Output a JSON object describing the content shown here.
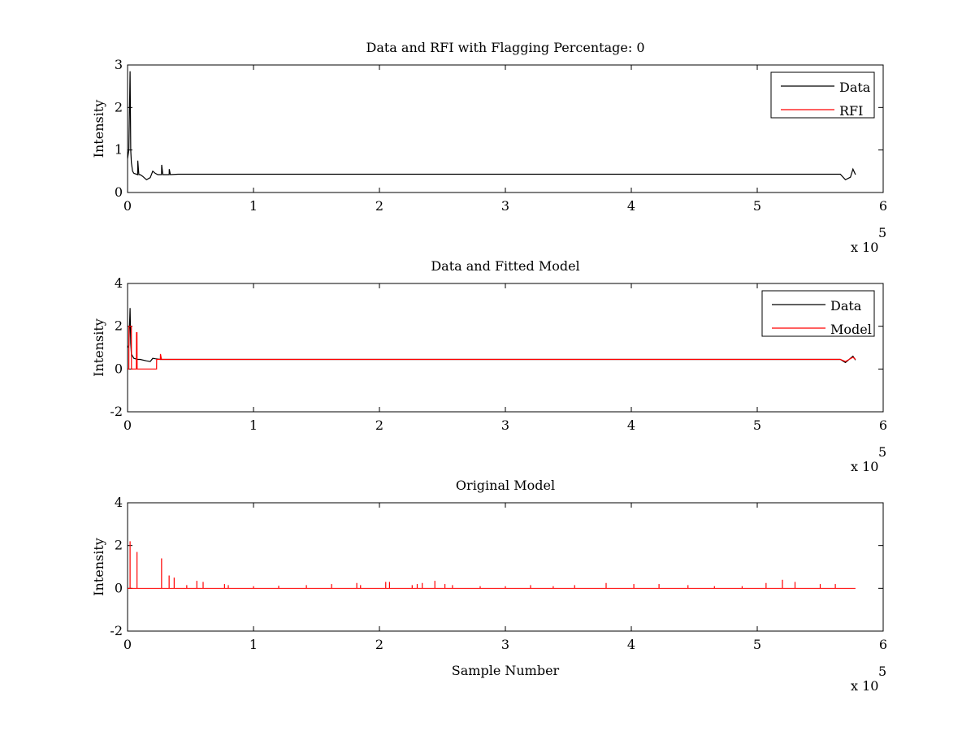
{
  "chart_data": [
    {
      "type": "line",
      "title": "Data and RFI with Flagging Percentage: 0",
      "xlabel": "",
      "ylabel": "Intensity",
      "xlim": [
        0,
        6
      ],
      "ylim": [
        0,
        3
      ],
      "xticks": [
        "0",
        "1",
        "2",
        "3",
        "4",
        "5",
        "6"
      ],
      "yticks": [
        "0",
        "1",
        "2",
        "3"
      ],
      "x_multiplier": "x 10",
      "x_exponent": "5",
      "legend": {
        "position": "top-right",
        "entries": [
          "Data",
          "RFI"
        ]
      },
      "series": [
        {
          "name": "Data",
          "color": "#000000",
          "x": [
            0.0,
            0.01,
            0.02,
            0.025,
            0.03,
            0.04,
            0.05,
            0.08,
            0.081,
            0.09,
            0.1,
            0.12,
            0.15,
            0.18,
            0.2,
            0.22,
            0.24,
            0.27,
            0.271,
            0.28,
            0.33,
            0.331,
            0.34,
            0.4,
            0.5,
            1.0,
            1.5,
            2.0,
            2.5,
            3.0,
            3.5,
            4.0,
            4.5,
            5.0,
            5.5,
            5.6,
            5.66,
            5.7,
            5.74,
            5.76,
            5.78
          ],
          "y": [
            0.8,
            1.0,
            2.85,
            1.0,
            0.7,
            0.5,
            0.45,
            0.42,
            0.75,
            0.42,
            0.42,
            0.38,
            0.3,
            0.35,
            0.5,
            0.45,
            0.42,
            0.42,
            0.65,
            0.42,
            0.42,
            0.55,
            0.42,
            0.43,
            0.43,
            0.43,
            0.43,
            0.43,
            0.43,
            0.43,
            0.43,
            0.43,
            0.43,
            0.43,
            0.43,
            0.43,
            0.43,
            0.3,
            0.36,
            0.55,
            0.42
          ]
        },
        {
          "name": "RFI",
          "color": "#ff0000",
          "x": [],
          "y": []
        }
      ]
    },
    {
      "type": "line",
      "title": "Data and Fitted Model",
      "xlabel": "",
      "ylabel": "Intensity",
      "xlim": [
        0,
        6
      ],
      "ylim": [
        -2,
        4
      ],
      "xticks": [
        "0",
        "1",
        "2",
        "3",
        "4",
        "5",
        "6"
      ],
      "yticks": [
        "-2",
        "0",
        "2",
        "4"
      ],
      "x_multiplier": "x 10",
      "x_exponent": "5",
      "legend": {
        "position": "top-right",
        "entries": [
          "Data",
          "Model"
        ]
      },
      "series": [
        {
          "name": "Data",
          "color": "#000000",
          "x": [
            0.0,
            0.01,
            0.02,
            0.025,
            0.03,
            0.05,
            0.08,
            0.1,
            0.15,
            0.18,
            0.2,
            0.22,
            0.26,
            0.5,
            1.0,
            2.0,
            3.0,
            4.0,
            5.0,
            5.5,
            5.66,
            5.7,
            5.76,
            5.78
          ],
          "y": [
            1.0,
            1.1,
            2.85,
            1.2,
            0.7,
            0.5,
            0.45,
            0.45,
            0.38,
            0.35,
            0.5,
            0.48,
            0.45,
            0.45,
            0.45,
            0.45,
            0.45,
            0.45,
            0.45,
            0.45,
            0.45,
            0.3,
            0.6,
            0.42
          ]
        },
        {
          "name": "Model",
          "color": "#ff0000",
          "x": [
            0.0,
            0.01,
            0.011,
            0.03,
            0.031,
            0.07,
            0.071,
            0.075,
            0.076,
            0.08,
            0.15,
            0.23,
            0.231,
            0.26,
            0.261,
            0.27,
            0.5,
            1.0,
            2.0,
            3.0,
            4.0,
            5.0,
            5.5,
            5.66,
            5.7,
            5.76,
            5.78
          ],
          "y": [
            0.0,
            0.0,
            2.0,
            2.0,
            0.0,
            0.0,
            1.7,
            1.7,
            0.0,
            0.0,
            0.0,
            0.0,
            0.45,
            0.45,
            0.7,
            0.45,
            0.45,
            0.45,
            0.45,
            0.45,
            0.45,
            0.45,
            0.45,
            0.45,
            0.35,
            0.55,
            0.45
          ]
        }
      ]
    },
    {
      "type": "line",
      "title": "Original Model",
      "xlabel": "Sample Number",
      "ylabel": "Intensity",
      "xlim": [
        0,
        6
      ],
      "ylim": [
        -2,
        4
      ],
      "xticks": [
        "0",
        "1",
        "2",
        "3",
        "4",
        "5",
        "6"
      ],
      "yticks": [
        "-2",
        "0",
        "2",
        "4"
      ],
      "x_multiplier": "x 10",
      "x_exponent": "5",
      "legend": null,
      "series": [
        {
          "name": "",
          "color": "#ff0000",
          "baseline": 0,
          "x_end": 5.78,
          "spikes": {
            "x": [
              0.02,
              0.075,
              0.27,
              0.33,
              0.37,
              0.47,
              0.55,
              0.6,
              0.77,
              0.8,
              1.0,
              1.2,
              1.42,
              1.62,
              1.82,
              1.85,
              2.05,
              2.08,
              2.26,
              2.3,
              2.34,
              2.44,
              2.52,
              2.58,
              2.8,
              3.0,
              3.2,
              3.38,
              3.55,
              3.8,
              4.02,
              4.22,
              4.45,
              4.66,
              4.88,
              5.07,
              5.2,
              5.3,
              5.5,
              5.62
            ],
            "y": [
              2.2,
              1.7,
              1.4,
              0.6,
              0.5,
              0.15,
              0.35,
              0.3,
              0.2,
              0.15,
              0.1,
              0.12,
              0.15,
              0.2,
              0.25,
              0.15,
              0.3,
              0.3,
              0.15,
              0.2,
              0.25,
              0.35,
              0.2,
              0.15,
              0.1,
              0.1,
              0.15,
              0.1,
              0.15,
              0.25,
              0.2,
              0.2,
              0.15,
              0.1,
              0.1,
              0.25,
              0.4,
              0.3,
              0.2,
              0.2
            ]
          }
        }
      ]
    }
  ]
}
